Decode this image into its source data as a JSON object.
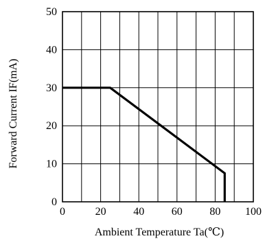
{
  "chart_data": {
    "type": "line",
    "title": "",
    "xlabel": "Ambient Temperature Ta(℃)",
    "ylabel": "Forward Current IF(mA)",
    "xlim": [
      0,
      100
    ],
    "ylim": [
      0,
      50
    ],
    "x_ticks": [
      0,
      20,
      40,
      60,
      80,
      100
    ],
    "y_ticks": [
      0,
      10,
      20,
      30,
      40,
      50
    ],
    "x_tick_labels": [
      "0",
      "20",
      "40",
      "60",
      "80",
      "100"
    ],
    "y_tick_labels": [
      "0",
      "10",
      "20",
      "30",
      "40",
      "50"
    ],
    "grid": true,
    "grid_x_step": 10,
    "grid_y_step": 10,
    "legend": "none",
    "series": [
      {
        "x": [
          0,
          25,
          85,
          85
        ],
        "y": [
          30,
          30,
          7.5,
          0
        ],
        "color": "#000000"
      }
    ]
  }
}
